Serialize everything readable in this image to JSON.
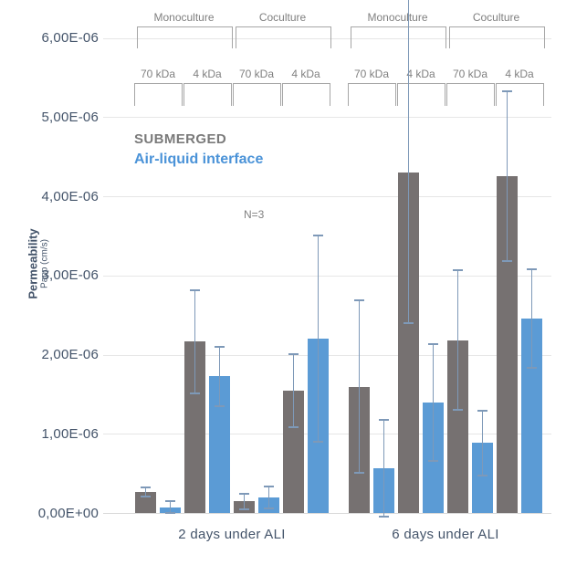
{
  "chart_data": {
    "type": "bar",
    "title": "",
    "ylabel": "Permeability",
    "ylabel_sub": "Papp (cm/s)",
    "annotation": "N=3",
    "y_tick_labels_top_down": [
      "6,00E-06",
      "5,00E-06",
      "4,00E-06",
      "3,00E-06",
      "2,00E-06",
      "1,00E-06",
      "0,00E+00"
    ],
    "ylim": [
      0,
      6e-06
    ],
    "value_unit": "cm/s",
    "values_note": "v and e are in units of 1e-6 cm/s",
    "grid": true,
    "legend_position": "top-left-inside",
    "series": [
      {
        "name": "SUBMERGED",
        "color": "#767171"
      },
      {
        "name": "Air-liquid interface",
        "color": "#5B9BD5"
      }
    ],
    "groups": [
      {
        "label": "2 days under ALI",
        "culture_labels": [
          "Monoculture",
          "Coculture"
        ],
        "pairs": [
          {
            "culture": "Monoculture",
            "size": "70 kDa",
            "submerged": {
              "v": 0.27,
              "e": 0.06
            },
            "ali": {
              "v": 0.08,
              "e": 0.07
            }
          },
          {
            "culture": "Monoculture",
            "size": "4 kDa",
            "submerged": {
              "v": 2.17,
              "e": 0.65
            },
            "ali": {
              "v": 1.73,
              "e": 0.37
            }
          },
          {
            "culture": "Coculture",
            "size": "70 kDa",
            "submerged": {
              "v": 0.15,
              "e": 0.1
            },
            "ali": {
              "v": 0.2,
              "e": 0.14
            }
          },
          {
            "culture": "Coculture",
            "size": "4 kDa",
            "submerged": {
              "v": 1.55,
              "e": 0.46
            },
            "ali": {
              "v": 2.21,
              "e": 1.3
            }
          }
        ]
      },
      {
        "label": "6 days under ALI",
        "culture_labels": [
          "Monoculture",
          "Coculture"
        ],
        "pairs": [
          {
            "culture": "Monoculture",
            "size": "70 kDa",
            "submerged": {
              "v": 1.6,
              "e": 1.09
            },
            "ali": {
              "v": 0.57,
              "e": 0.61
            }
          },
          {
            "culture": "Monoculture",
            "size": "4 kDa",
            "submerged": {
              "v": 4.31,
              "e_up": 2.3,
              "e_down": 1.91
            },
            "ali": {
              "v": 1.4,
              "e": 0.74
            }
          },
          {
            "culture": "Coculture",
            "size": "70 kDa",
            "submerged": {
              "v": 2.19,
              "e": 0.88
            },
            "ali": {
              "v": 0.89,
              "e": 0.41
            }
          },
          {
            "culture": "Coculture",
            "size": "4 kDa",
            "submerged": {
              "v": 4.26,
              "e": 1.07
            },
            "ali": {
              "v": 2.46,
              "e": 0.62
            }
          }
        ]
      }
    ]
  },
  "colors": {
    "submerged_bar": "#767171",
    "ali_bar": "#5B9BD5",
    "legend_submerged_text": "#7a7a7a",
    "legend_ali_text": "#4B93D8",
    "axis_text": "#44546A",
    "bracket_line": "#a6a6a6",
    "bracket_text": "#808080",
    "gridline": "#e6e6e6",
    "axis_line": "#d9d9d9",
    "error_bar": "#7E99B8",
    "annotation_text": "#808080"
  }
}
